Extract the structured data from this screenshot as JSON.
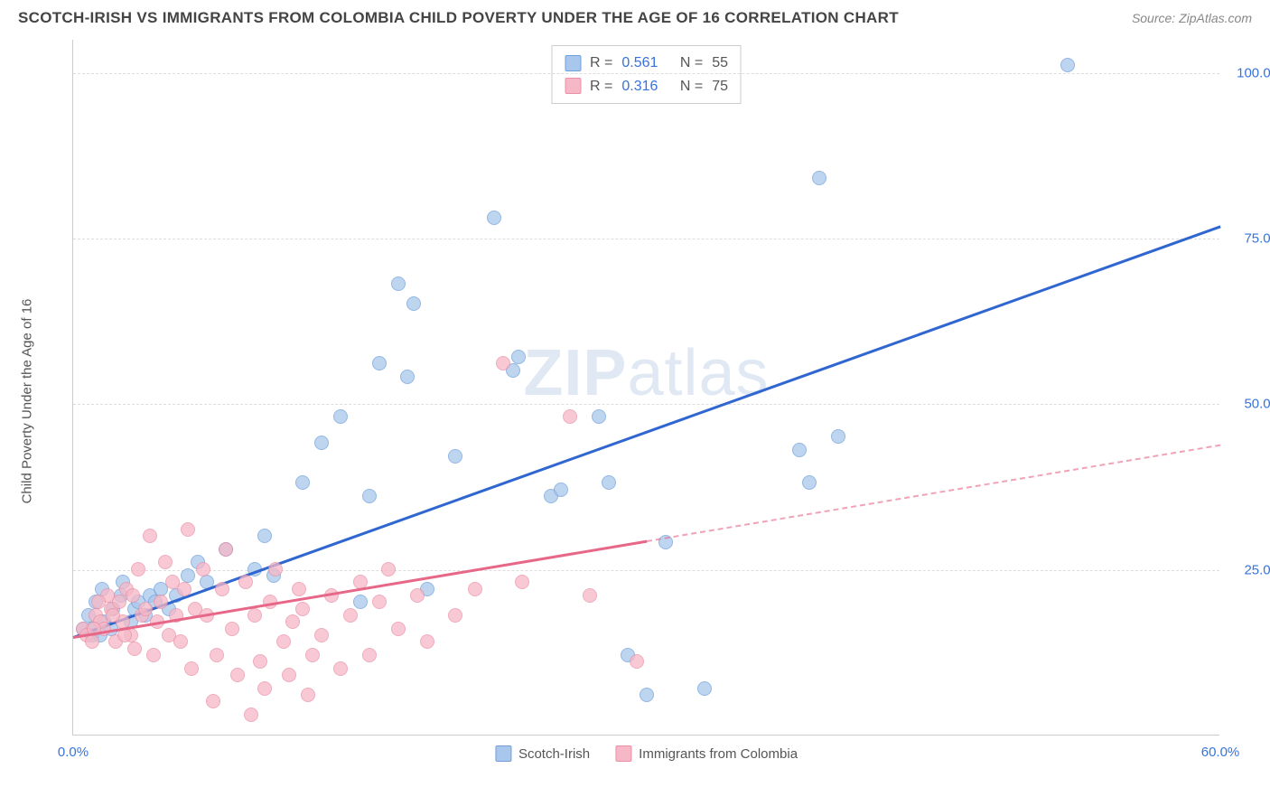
{
  "title": "SCOTCH-IRISH VS IMMIGRANTS FROM COLOMBIA CHILD POVERTY UNDER THE AGE OF 16 CORRELATION CHART",
  "source_label": "Source: ZipAtlas.com",
  "watermark_bold": "ZIP",
  "watermark_light": "atlas",
  "ylabel": "Child Poverty Under the Age of 16",
  "chart": {
    "type": "scatter",
    "xlim": [
      0,
      60
    ],
    "ylim": [
      0,
      105
    ],
    "background": "#ffffff",
    "grid_color": "#dddddd",
    "xticks": [
      0,
      60
    ],
    "xtick_labels": [
      "0.0%",
      "60.0%"
    ],
    "yticks": [
      25,
      50,
      75,
      100
    ],
    "ytick_labels": [
      "25.0%",
      "50.0%",
      "75.0%",
      "100.0%"
    ],
    "xtick_color": "#3773db",
    "ytick_color": "#3773db",
    "axis_color": "#cccccc"
  },
  "series": [
    {
      "name": "Scotch-Irish",
      "label": "Scotch-Irish",
      "fill": "#a9c7ec",
      "stroke": "#6fa0db",
      "trend_color": "#2f66d0",
      "trend_dash": false,
      "trend": {
        "x1": 0,
        "y1": 15,
        "x2": 60,
        "y2": 77
      },
      "r_label": "R =",
      "r_value": "0.561",
      "n_label": "N =",
      "n_value": "55",
      "marker_radius": 8,
      "points": [
        [
          0.5,
          16
        ],
        [
          0.8,
          18
        ],
        [
          1,
          15
        ],
        [
          1.2,
          20
        ],
        [
          1.6,
          17
        ],
        [
          1.5,
          22
        ],
        [
          2,
          16
        ],
        [
          2.1,
          19
        ],
        [
          2.5,
          21
        ],
        [
          2.6,
          23
        ],
        [
          3,
          17
        ],
        [
          3.2,
          19
        ],
        [
          3.4,
          20
        ],
        [
          3.8,
          18
        ],
        [
          4,
          21
        ],
        [
          4.3,
          20
        ],
        [
          4.6,
          22
        ],
        [
          5,
          19
        ],
        [
          5.4,
          21
        ],
        [
          6,
          24
        ],
        [
          6.5,
          26
        ],
        [
          7,
          23
        ],
        [
          8,
          28
        ],
        [
          9.5,
          25
        ],
        [
          10,
          30
        ],
        [
          10.5,
          24
        ],
        [
          12,
          38
        ],
        [
          13,
          44
        ],
        [
          14,
          48
        ],
        [
          15,
          20
        ],
        [
          15.5,
          36
        ],
        [
          16,
          56
        ],
        [
          17,
          68
        ],
        [
          17.5,
          54
        ],
        [
          17.8,
          65
        ],
        [
          18.5,
          22
        ],
        [
          20,
          42
        ],
        [
          22,
          78
        ],
        [
          23,
          55
        ],
        [
          23.3,
          57
        ],
        [
          25,
          36
        ],
        [
          25.5,
          37
        ],
        [
          27.5,
          48
        ],
        [
          28,
          38
        ],
        [
          29,
          12
        ],
        [
          30,
          6
        ],
        [
          31,
          29
        ],
        [
          33,
          7
        ],
        [
          38,
          43
        ],
        [
          38.5,
          38
        ],
        [
          39,
          84
        ],
        [
          40,
          45
        ],
        [
          52,
          101
        ],
        [
          1,
          16
        ],
        [
          1.4,
          15
        ]
      ]
    },
    {
      "name": "Immigrants from Colombia",
      "label": "Immigrants from Colombia",
      "fill": "#f6b8c6",
      "stroke": "#ea91a7",
      "trend_color": "#e76788",
      "trend_dash": true,
      "trend_solid_until": 30,
      "trend": {
        "x1": 0,
        "y1": 15,
        "x2": 60,
        "y2": 44
      },
      "r_label": "R =",
      "r_value": "0.316",
      "n_label": "N =",
      "n_value": "75",
      "marker_radius": 8,
      "points": [
        [
          0.5,
          16
        ],
        [
          0.7,
          15
        ],
        [
          1,
          14
        ],
        [
          1.2,
          18
        ],
        [
          1.4,
          17
        ],
        [
          1.6,
          16
        ],
        [
          1.8,
          21
        ],
        [
          2,
          19
        ],
        [
          2.2,
          14
        ],
        [
          2.4,
          20
        ],
        [
          2.6,
          17
        ],
        [
          2.8,
          22
        ],
        [
          3,
          15
        ],
        [
          3.2,
          13
        ],
        [
          3.4,
          25
        ],
        [
          3.6,
          18
        ],
        [
          3.8,
          19
        ],
        [
          4,
          30
        ],
        [
          4.2,
          12
        ],
        [
          4.4,
          17
        ],
        [
          4.6,
          20
        ],
        [
          4.8,
          26
        ],
        [
          5,
          15
        ],
        [
          5.2,
          23
        ],
        [
          5.4,
          18
        ],
        [
          5.6,
          14
        ],
        [
          5.8,
          22
        ],
        [
          6,
          31
        ],
        [
          6.2,
          10
        ],
        [
          6.4,
          19
        ],
        [
          6.8,
          25
        ],
        [
          7,
          18
        ],
        [
          7.3,
          5
        ],
        [
          7.5,
          12
        ],
        [
          7.8,
          22
        ],
        [
          8,
          28
        ],
        [
          8.3,
          16
        ],
        [
          8.6,
          9
        ],
        [
          9,
          23
        ],
        [
          9.3,
          3
        ],
        [
          9.5,
          18
        ],
        [
          9.8,
          11
        ],
        [
          10,
          7
        ],
        [
          10.3,
          20
        ],
        [
          10.6,
          25
        ],
        [
          11,
          14
        ],
        [
          11.3,
          9
        ],
        [
          11.5,
          17
        ],
        [
          11.8,
          22
        ],
        [
          12,
          19
        ],
        [
          12.3,
          6
        ],
        [
          12.5,
          12
        ],
        [
          13,
          15
        ],
        [
          13.5,
          21
        ],
        [
          14,
          10
        ],
        [
          14.5,
          18
        ],
        [
          15,
          23
        ],
        [
          15.5,
          12
        ],
        [
          16,
          20
        ],
        [
          16.5,
          25
        ],
        [
          17,
          16
        ],
        [
          18,
          21
        ],
        [
          18.5,
          14
        ],
        [
          20,
          18
        ],
        [
          21,
          22
        ],
        [
          22.5,
          56
        ],
        [
          23.5,
          23
        ],
        [
          26,
          48
        ],
        [
          27,
          21
        ],
        [
          29.5,
          11
        ],
        [
          1.1,
          16
        ],
        [
          1.3,
          20
        ],
        [
          2.1,
          18
        ],
        [
          2.7,
          15
        ],
        [
          3.1,
          21
        ]
      ]
    }
  ]
}
